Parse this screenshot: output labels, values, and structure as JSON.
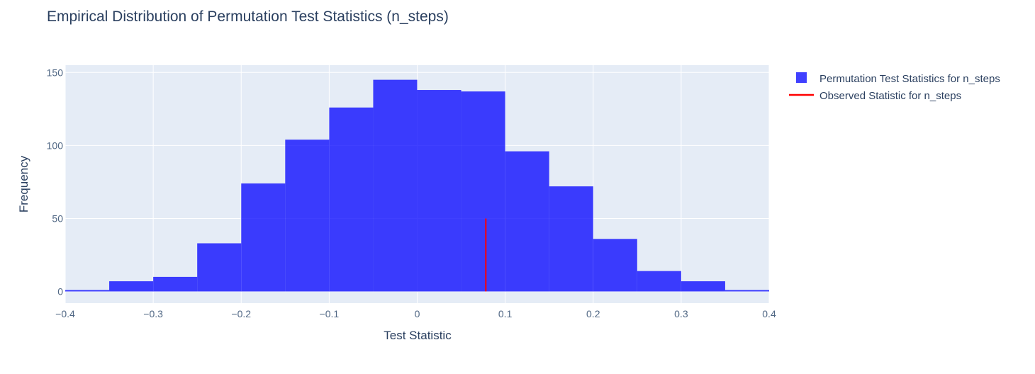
{
  "chart_data": {
    "type": "bar",
    "title": "Empirical Distribution of Permutation Test Statistics (n_steps)",
    "xlabel": "Test Statistic",
    "ylabel": "Frequency",
    "xlim": [
      -0.4,
      0.4
    ],
    "ylim": [
      -8,
      155
    ],
    "x_ticks": [
      -0.4,
      -0.3,
      -0.2,
      -0.1,
      0,
      0.1,
      0.2,
      0.3,
      0.4
    ],
    "x_tick_labels": [
      "−0.4",
      "−0.3",
      "−0.2",
      "−0.1",
      "0",
      "0.1",
      "0.2",
      "0.3",
      "0.4"
    ],
    "y_ticks": [
      0,
      50,
      100,
      150
    ],
    "y_tick_labels": [
      "0",
      "50",
      "100",
      "150"
    ],
    "grid": true,
    "legend_position": "top-right",
    "histogram": {
      "name": "Permutation Test Statistics for n_steps",
      "color": "#0000ff",
      "opacity": 0.75,
      "bin_edges": [
        -0.4,
        -0.35,
        -0.3,
        -0.25,
        -0.2,
        -0.15,
        -0.1,
        -0.05,
        0.0,
        0.05,
        0.1,
        0.15,
        0.2,
        0.25,
        0.3,
        0.35,
        0.4
      ],
      "values": [
        1,
        7,
        10,
        33,
        74,
        104,
        126,
        145,
        138,
        137,
        96,
        72,
        36,
        14,
        7,
        1
      ]
    },
    "observed_line": {
      "name": "Observed Statistic for n_steps",
      "color": "#ff0000",
      "x": 0.078,
      "y": [
        0,
        50
      ]
    },
    "colors": {
      "plot_bg": "#e5ecf6",
      "grid": "#ffffff",
      "text": "#2a3f5f",
      "tick_text": "#506784"
    }
  }
}
